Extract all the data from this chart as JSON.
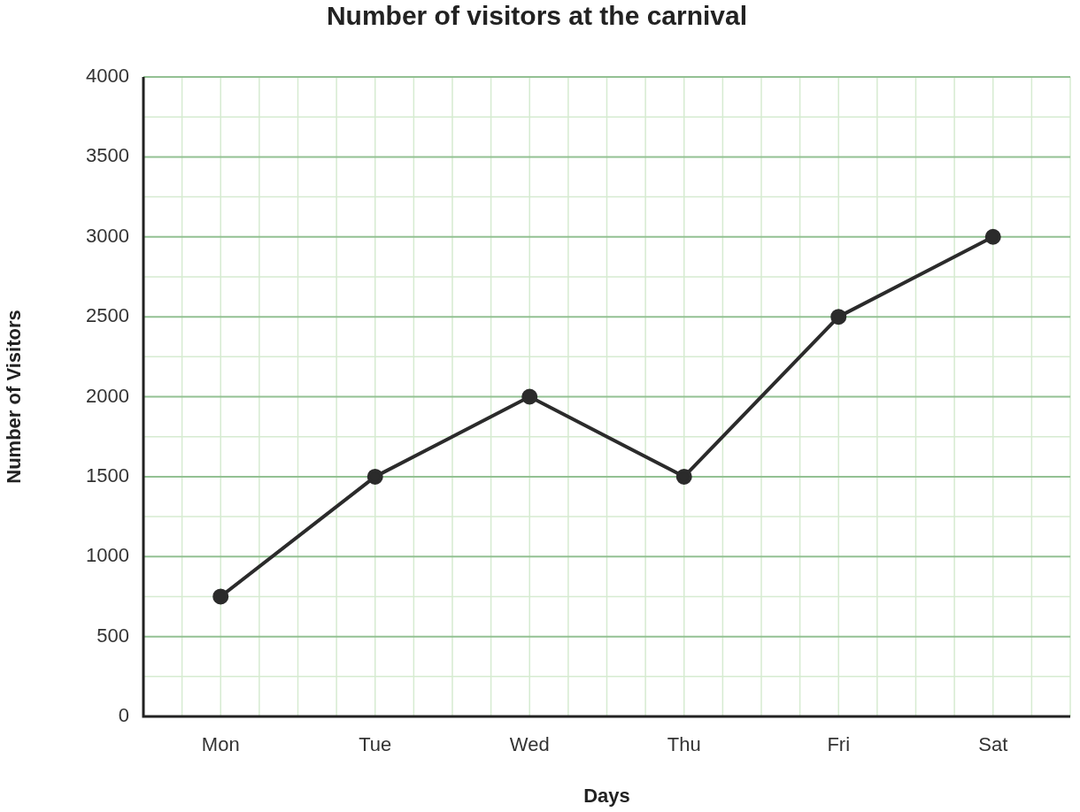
{
  "chart_data": {
    "type": "line",
    "title": "Number of visitors at the carnival",
    "xlabel": "Days",
    "ylabel": "Number of Visitors",
    "categories": [
      "Mon",
      "Tue",
      "Wed",
      "Thu",
      "Fri",
      "Sat"
    ],
    "series": [
      {
        "color": "#2b2b2b",
        "values": [
          750,
          1500,
          2000,
          1500,
          2500,
          3000
        ]
      }
    ],
    "ylim": [
      0,
      4000
    ],
    "yticks": [
      0,
      500,
      1000,
      1500,
      2000,
      2500,
      3000,
      3500,
      4000
    ],
    "grid": true,
    "legend": false,
    "marker": "circle",
    "line_style": "solid"
  }
}
